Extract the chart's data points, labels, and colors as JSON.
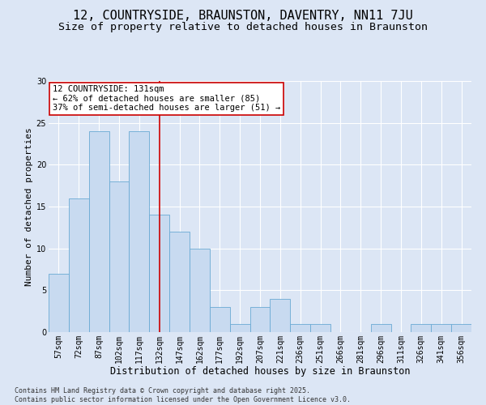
{
  "title": "12, COUNTRYSIDE, BRAUNSTON, DAVENTRY, NN11 7JU",
  "subtitle": "Size of property relative to detached houses in Braunston",
  "xlabel": "Distribution of detached houses by size in Braunston",
  "ylabel": "Number of detached properties",
  "categories": [
    "57sqm",
    "72sqm",
    "87sqm",
    "102sqm",
    "117sqm",
    "132sqm",
    "147sqm",
    "162sqm",
    "177sqm",
    "192sqm",
    "207sqm",
    "221sqm",
    "236sqm",
    "251sqm",
    "266sqm",
    "281sqm",
    "296sqm",
    "311sqm",
    "326sqm",
    "341sqm",
    "356sqm"
  ],
  "values": [
    7,
    16,
    24,
    18,
    24,
    14,
    12,
    10,
    3,
    1,
    3,
    4,
    1,
    1,
    0,
    0,
    1,
    0,
    1,
    1,
    1
  ],
  "bar_color": "#c8daf0",
  "bar_edge_color": "#6aaad4",
  "highlight_bar_index": 5,
  "highlight_line_color": "#cc0000",
  "ylim": [
    0,
    30
  ],
  "yticks": [
    0,
    5,
    10,
    15,
    20,
    25,
    30
  ],
  "annotation_line1": "12 COUNTRYSIDE: 131sqm",
  "annotation_line2": "← 62% of detached houses are smaller (85)",
  "annotation_line3": "37% of semi-detached houses are larger (51) →",
  "annotation_box_color": "#cc0000",
  "annotation_box_bg": "#ffffff",
  "background_color": "#dce6f5",
  "footer_line1": "Contains HM Land Registry data © Crown copyright and database right 2025.",
  "footer_line2": "Contains public sector information licensed under the Open Government Licence v3.0.",
  "title_fontsize": 11,
  "subtitle_fontsize": 9.5,
  "xlabel_fontsize": 8.5,
  "ylabel_fontsize": 8,
  "tick_fontsize": 7,
  "annotation_fontsize": 7.5,
  "footer_fontsize": 6
}
